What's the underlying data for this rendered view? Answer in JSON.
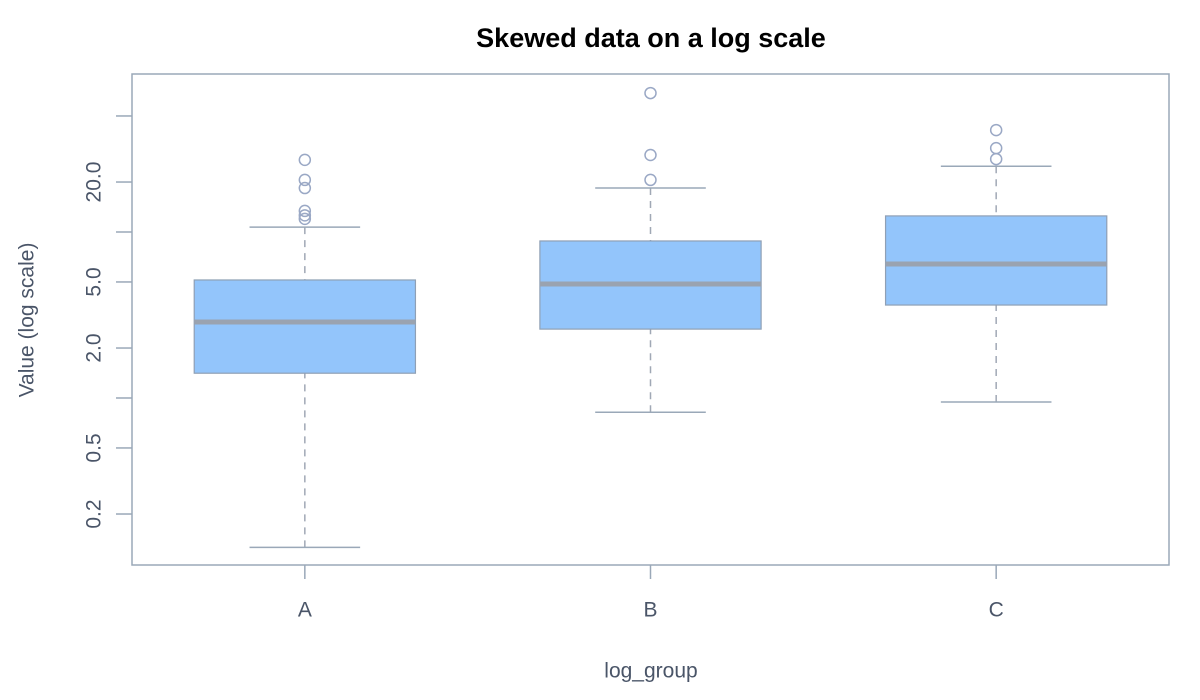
{
  "chart_data": {
    "type": "box",
    "title": "Skewed data on a log scale",
    "x_label": "log_group",
    "y_label": "Value (log scale)",
    "categories": [
      "A",
      "B",
      "C"
    ],
    "boxes": [
      {
        "whislo": 0.126,
        "q1": 1.41,
        "med": 2.87,
        "q3": 5.14,
        "whishi": 10.7,
        "fliers": [
          27.2,
          20.6,
          18.4,
          13.4,
          12.6,
          12.0
        ]
      },
      {
        "whislo": 0.82,
        "q1": 2.6,
        "med": 4.86,
        "q3": 8.83,
        "whishi": 18.4,
        "fliers": [
          68.7,
          29.1,
          20.6
        ]
      },
      {
        "whislo": 0.946,
        "q1": 3.63,
        "med": 6.41,
        "q3": 12.5,
        "whishi": 24.9,
        "fliers": [
          41.1,
          32.0,
          27.5
        ]
      }
    ],
    "color": "#93c5fb",
    "edge_color": "#8fa0b5",
    "median_color": "#9aa3b0",
    "log_y": true,
    "ylim": [
      0.0986,
      89.5
    ],
    "yticks": [
      0.2,
      {
        "value": 0.5,
        "label": "0.5"
      },
      {
        "value": 1,
        "label": null
      },
      {
        "value": 2,
        "label": "2.0"
      },
      {
        "value": 5,
        "label": "5.0"
      },
      {
        "value": 10,
        "label": null
      },
      {
        "value": 20,
        "label": "20.0"
      },
      {
        "value": 50,
        "label": null
      }
    ]
  }
}
